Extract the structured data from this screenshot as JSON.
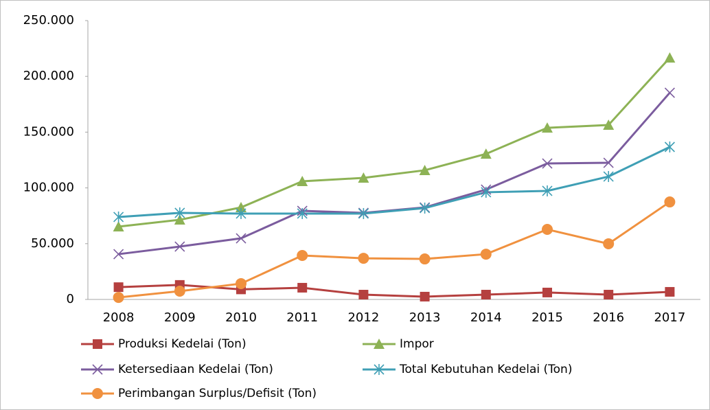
{
  "chart_data": {
    "type": "line",
    "categories": [
      "2008",
      "2009",
      "2010",
      "2011",
      "2012",
      "2013",
      "2014",
      "2015",
      "2016",
      "2017"
    ],
    "series": [
      {
        "name": "Produksi Kedelai (Ton)",
        "color": "#b5403f",
        "marker": "square",
        "values": [
          11000,
          13000,
          9000,
          10500,
          4300,
          2500,
          4300,
          6200,
          4300,
          6800
        ]
      },
      {
        "name": "Impor",
        "color": "#8db255",
        "marker": "triangle",
        "values": [
          65300,
          71400,
          82500,
          105900,
          109000,
          115800,
          130500,
          153900,
          156400,
          216700
        ]
      },
      {
        "name": "Ketersediaan Kedelai (Ton)",
        "color": "#7b5c9e",
        "marker": "x",
        "values": [
          40600,
          47400,
          54800,
          79400,
          77600,
          82500,
          98500,
          121900,
          122500,
          185300
        ]
      },
      {
        "name": "Total Kebutuhan Kedelai (Ton)",
        "color": "#3f9fb5",
        "marker": "star",
        "values": [
          73900,
          77600,
          77000,
          77000,
          77000,
          81900,
          96100,
          97300,
          110200,
          136700
        ]
      },
      {
        "name": "Perimbangan Surplus/Defisit (Ton)",
        "color": "#f0913f",
        "marker": "circle",
        "values": [
          1800,
          7400,
          14200,
          39400,
          36900,
          36300,
          40600,
          62800,
          49900,
          87400
        ]
      }
    ],
    "ylim": [
      0,
      250000
    ],
    "yticks": [
      0,
      {
        "value": 50000,
        "label": "50.000"
      },
      {
        "value": 100000,
        "label": "100.000"
      },
      {
        "value": 150000,
        "label": "150.000"
      },
      {
        "value": 200000,
        "label": "200.000"
      },
      {
        "value": 250000,
        "label": "250.000"
      }
    ],
    "grid": false,
    "legend": "bottom"
  }
}
